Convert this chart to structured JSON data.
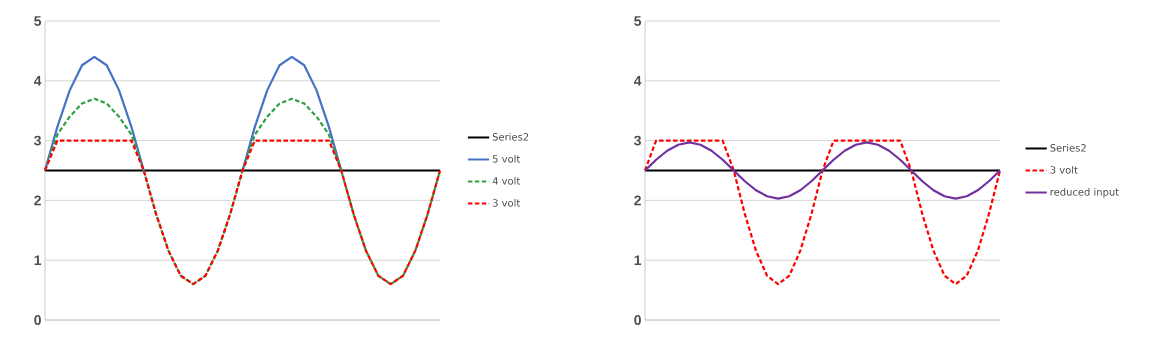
{
  "chart_data": [
    {
      "type": "line",
      "categories": [
        null,
        null,
        null,
        null,
        null,
        null,
        null,
        null,
        null,
        null,
        null,
        null,
        null,
        null,
        null,
        null,
        null,
        null,
        null,
        null,
        null,
        null,
        null,
        null,
        null,
        null,
        null,
        null,
        null,
        null,
        null,
        null,
        null
      ],
      "ylim": [
        0,
        5
      ],
      "yticks": [
        0,
        1,
        2,
        3,
        4,
        5
      ],
      "grid": "y",
      "legend": "right",
      "tick_labels": "y",
      "marker": "none",
      "series": [
        {
          "name": "Series2",
          "color": "#000000",
          "line_style": "solid",
          "values": [
            2.5,
            2.5,
            2.5,
            2.5,
            2.5,
            2.5,
            2.5,
            2.5,
            2.5,
            2.5,
            2.5,
            2.5,
            2.5,
            2.5,
            2.5,
            2.5,
            2.5,
            2.5,
            2.5,
            2.5,
            2.5,
            2.5,
            2.5,
            2.5,
            2.5,
            2.5,
            2.5,
            2.5,
            2.5,
            2.5,
            2.5,
            2.5,
            2.5
          ]
        },
        {
          "name": "5 volt",
          "color": "#4472c4",
          "line_style": "solid",
          "values": [
            2.5,
            3.23,
            3.84,
            4.26,
            4.4,
            4.26,
            3.84,
            3.23,
            2.5,
            null,
            null,
            null,
            null,
            null,
            null,
            null,
            2.5,
            3.23,
            3.84,
            4.26,
            4.4,
            4.26,
            3.84,
            3.23,
            2.5,
            null,
            null,
            null,
            null,
            null,
            null,
            null,
            null
          ]
        },
        {
          "name": "4 volt",
          "color": "#2ea043",
          "line_style": "dashed",
          "values": [
            2.5,
            3.1,
            3.4,
            3.62,
            3.7,
            3.62,
            3.4,
            3.1,
            2.5,
            1.77,
            1.16,
            0.74,
            0.6,
            0.74,
            1.16,
            1.77,
            2.5,
            3.1,
            3.4,
            3.62,
            3.7,
            3.62,
            3.4,
            3.1,
            2.5,
            1.77,
            1.16,
            0.74,
            0.6,
            0.74,
            1.16,
            1.77,
            2.5
          ]
        },
        {
          "name": "3 volt",
          "color": "#ff0000",
          "line_style": "dashed",
          "values": [
            2.5,
            3,
            3,
            3,
            3,
            3,
            3,
            3,
            2.5,
            1.77,
            1.16,
            0.74,
            0.6,
            0.74,
            1.16,
            1.77,
            2.5,
            3,
            3,
            3,
            3,
            3,
            3,
            3,
            2.5,
            1.77,
            1.16,
            0.74,
            0.6,
            0.74,
            1.16,
            1.77,
            2.5
          ]
        }
      ]
    },
    {
      "type": "line",
      "categories": [
        null,
        null,
        null,
        null,
        null,
        null,
        null,
        null,
        null,
        null,
        null,
        null,
        null,
        null,
        null,
        null,
        null,
        null,
        null,
        null,
        null,
        null,
        null,
        null,
        null,
        null,
        null,
        null,
        null,
        null,
        null,
        null,
        null
      ],
      "ylim": [
        0,
        5
      ],
      "yticks": [
        0,
        1,
        2,
        3,
        4,
        5
      ],
      "grid": "y",
      "legend": "right",
      "tick_labels": "y",
      "marker": "none",
      "series": [
        {
          "name": "Series2",
          "color": "#000000",
          "line_style": "solid",
          "values": [
            2.5,
            2.5,
            2.5,
            2.5,
            2.5,
            2.5,
            2.5,
            2.5,
            2.5,
            2.5,
            2.5,
            2.5,
            2.5,
            2.5,
            2.5,
            2.5,
            2.5,
            2.5,
            2.5,
            2.5,
            2.5,
            2.5,
            2.5,
            2.5,
            2.5,
            2.5,
            2.5,
            2.5,
            2.5,
            2.5,
            2.5,
            2.5,
            2.5
          ]
        },
        {
          "name": "3 volt",
          "color": "#ff0000",
          "line_style": "dashed",
          "values": [
            2.5,
            3,
            3,
            3,
            3,
            3,
            3,
            3,
            2.5,
            1.77,
            1.16,
            0.74,
            0.6,
            0.74,
            1.16,
            1.77,
            2.5,
            3,
            3,
            3,
            3,
            3,
            3,
            3,
            2.5,
            1.77,
            1.16,
            0.74,
            0.6,
            0.74,
            1.16,
            1.77,
            2.5
          ]
        },
        {
          "name": "reduced input",
          "color": "#7030a0",
          "line_style": "solid",
          "values": [
            2.5,
            2.68,
            2.83,
            2.93,
            2.97,
            2.93,
            2.83,
            2.68,
            2.5,
            2.32,
            2.17,
            2.07,
            2.03,
            2.07,
            2.17,
            2.32,
            2.5,
            2.68,
            2.83,
            2.93,
            2.97,
            2.93,
            2.83,
            2.68,
            2.5,
            2.32,
            2.17,
            2.07,
            2.03,
            2.07,
            2.17,
            2.32,
            2.5
          ]
        }
      ]
    }
  ]
}
